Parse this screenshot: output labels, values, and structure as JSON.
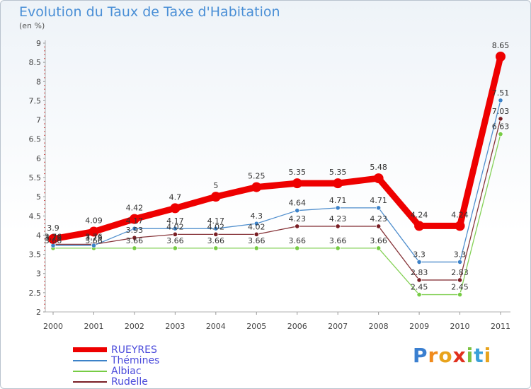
{
  "title": "Evolution du Taux de Taxe d'Habitation",
  "subtitle": "(en %)",
  "brand": "Proxiti",
  "chart_data": {
    "type": "line",
    "x": [
      "2000",
      "2001",
      "2002",
      "2003",
      "2004",
      "2005",
      "2006",
      "2007",
      "2008",
      "2009",
      "2010",
      "2011"
    ],
    "ylim": [
      2,
      9
    ],
    "yticks": [
      "2",
      "2.5",
      "3",
      "3.5",
      "4",
      "4.5",
      "5",
      "5.5",
      "6",
      "6.5",
      "7",
      "7.5",
      "8",
      "8.5",
      "9"
    ],
    "grid": false,
    "legend_position": "bottom-left",
    "series": [
      {
        "name": "RUEYRES",
        "color": "#ee0000",
        "values": [
          3.9,
          4.09,
          4.42,
          4.7,
          5,
          5.25,
          5.35,
          5.35,
          5.48,
          4.24,
          4.24,
          8.65
        ],
        "labels": [
          "3.9",
          "4.09",
          "4.42",
          "4.7",
          "5",
          "5.25",
          "5.35",
          "5.35",
          "5.48",
          "4.24",
          "4.24",
          "8.65"
        ]
      },
      {
        "name": "Thémines",
        "color": "#3c82c8",
        "values": [
          3.73,
          3.73,
          4.17,
          4.17,
          4.17,
          4.3,
          4.64,
          4.71,
          4.71,
          3.3,
          3.3,
          7.51
        ],
        "labels": [
          "3.73",
          "3.73",
          "4.17",
          "4.17",
          "4.17",
          "4.3",
          "4.64",
          "4.71",
          "4.71",
          "3.3",
          "3.3",
          "7.51"
        ]
      },
      {
        "name": "Albiac",
        "color": "#77cc44",
        "values": [
          3.66,
          3.66,
          3.66,
          3.66,
          3.66,
          3.66,
          3.66,
          3.66,
          3.66,
          2.45,
          2.45,
          6.63
        ],
        "labels": [
          "3.66",
          "3.66",
          "3.66",
          "3.66",
          "3.66",
          "3.66",
          "3.66",
          "3.66",
          "3.66",
          "2.45",
          "2.45",
          "6.63"
        ]
      },
      {
        "name": "Rudelle",
        "color": "#7a1f25",
        "values": [
          3.76,
          3.76,
          3.93,
          4.02,
          4.02,
          4.02,
          4.23,
          4.23,
          4.23,
          2.83,
          2.83,
          7.03
        ],
        "labels": [
          "3.76",
          "3.76",
          "3.93",
          "4.02",
          "4.02",
          "4.02",
          "4.23",
          "4.23",
          "4.23",
          "2.83",
          "2.83",
          "7.03"
        ]
      }
    ]
  }
}
